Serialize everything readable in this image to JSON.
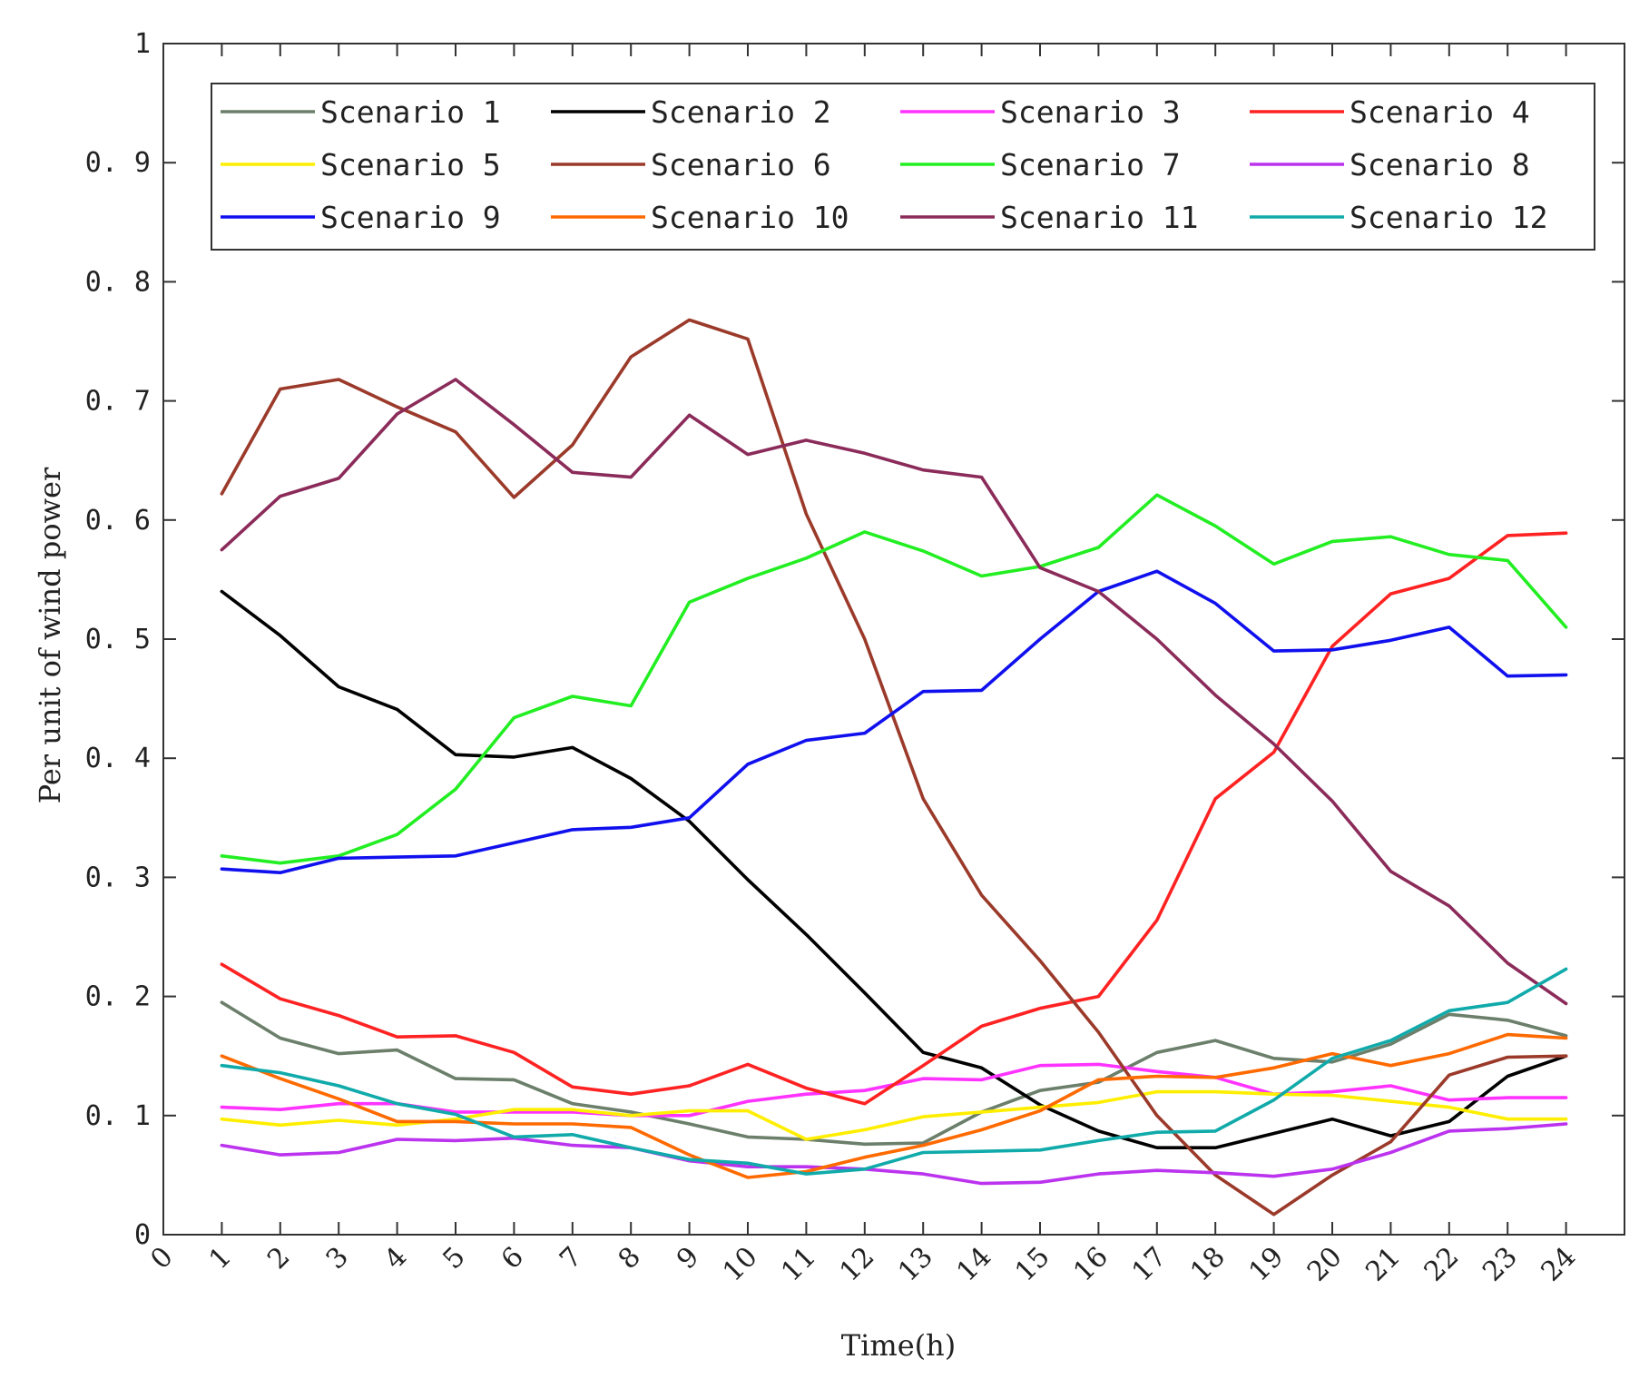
{
  "chart_data": {
    "type": "line",
    "title": "",
    "xlabel": "Time(h)",
    "ylabel": "Per unit of wind power",
    "xlim": [
      0,
      25
    ],
    "ylim": [
      0,
      1
    ],
    "x_ticks": [
      "0",
      "1",
      "2",
      "3",
      "4",
      "5",
      "6",
      "7",
      "8",
      "9",
      "10",
      "11",
      "12",
      "13",
      "14",
      "15",
      "16",
      "17",
      "18",
      "19",
      "20",
      "21",
      "22",
      "23",
      "24"
    ],
    "y_ticks": [
      "0",
      "0.1",
      "0.2",
      "0.3",
      "0.4",
      "0.5",
      "0.6",
      "0.7",
      "0.8",
      "0.9",
      "1"
    ],
    "legend_position": "top",
    "x": [
      1,
      2,
      3,
      4,
      5,
      6,
      7,
      8,
      9,
      10,
      11,
      12,
      13,
      14,
      15,
      16,
      17,
      18,
      19,
      20,
      21,
      22,
      23,
      24
    ],
    "series": [
      {
        "name": "Scenario 1",
        "color": "#6b7f6b",
        "values": [
          0.195,
          0.165,
          0.152,
          0.155,
          0.131,
          0.13,
          0.11,
          0.103,
          0.093,
          0.082,
          0.08,
          0.076,
          0.077,
          0.103,
          0.121,
          0.128,
          0.153,
          0.163,
          0.148,
          0.145,
          0.16,
          0.185,
          0.18,
          0.167
        ]
      },
      {
        "name": "Scenario 2",
        "color": "#000000",
        "values": [
          0.54,
          0.503,
          0.46,
          0.441,
          0.403,
          0.401,
          0.409,
          0.383,
          0.347,
          0.298,
          0.252,
          0.203,
          0.153,
          0.14,
          0.109,
          0.087,
          0.073,
          0.073,
          0.085,
          0.097,
          0.083,
          0.095,
          0.133,
          0.15
        ]
      },
      {
        "name": "Scenario 3",
        "color": "#ff33ff",
        "values": [
          0.107,
          0.105,
          0.11,
          0.11,
          0.103,
          0.103,
          0.103,
          0.1,
          0.1,
          0.112,
          0.118,
          0.121,
          0.131,
          0.13,
          0.142,
          0.143,
          0.137,
          0.132,
          0.118,
          0.12,
          0.125,
          0.113,
          0.115,
          0.115
        ]
      },
      {
        "name": "Scenario 4",
        "color": "#ff2222",
        "values": [
          0.227,
          0.198,
          0.184,
          0.166,
          0.167,
          0.153,
          0.124,
          0.118,
          0.125,
          0.143,
          0.123,
          0.11,
          0.142,
          0.175,
          0.19,
          0.2,
          0.264,
          0.366,
          0.405,
          0.494,
          0.538,
          0.551,
          0.587,
          0.589
        ]
      },
      {
        "name": "Scenario 5",
        "color": "#ffee00",
        "values": [
          0.097,
          0.092,
          0.096,
          0.092,
          0.097,
          0.105,
          0.105,
          0.1,
          0.104,
          0.104,
          0.08,
          0.088,
          0.099,
          0.103,
          0.107,
          0.111,
          0.12,
          0.12,
          0.118,
          0.117,
          0.112,
          0.107,
          0.097,
          0.097
        ]
      },
      {
        "name": "Scenario 6",
        "color": "#9b3a2a",
        "values": [
          0.622,
          0.71,
          0.718,
          0.695,
          0.674,
          0.619,
          0.663,
          0.737,
          0.768,
          0.752,
          0.605,
          0.5,
          0.366,
          0.285,
          0.23,
          0.17,
          0.1,
          0.05,
          0.017,
          0.05,
          0.078,
          0.134,
          0.149,
          0.15
        ]
      },
      {
        "name": "Scenario 7",
        "color": "#22ee22",
        "values": [
          0.318,
          0.312,
          0.318,
          0.336,
          0.374,
          0.434,
          0.452,
          0.444,
          0.531,
          0.551,
          0.568,
          0.59,
          0.574,
          0.553,
          0.561,
          0.577,
          0.621,
          0.595,
          0.563,
          0.582,
          0.586,
          0.571,
          0.566,
          0.51
        ]
      },
      {
        "name": "Scenario 8",
        "color": "#bb33ee",
        "values": [
          0.075,
          0.067,
          0.069,
          0.08,
          0.079,
          0.081,
          0.075,
          0.073,
          0.062,
          0.057,
          0.057,
          0.055,
          0.051,
          0.043,
          0.044,
          0.051,
          0.054,
          0.052,
          0.049,
          0.055,
          0.069,
          0.087,
          0.089,
          0.093
        ]
      },
      {
        "name": "Scenario 9",
        "color": "#1010ee",
        "values": [
          0.307,
          0.304,
          0.316,
          0.317,
          0.318,
          0.329,
          0.34,
          0.342,
          0.35,
          0.395,
          0.415,
          0.421,
          0.456,
          0.457,
          0.5,
          0.54,
          0.557,
          0.53,
          0.49,
          0.491,
          0.499,
          0.51,
          0.469,
          0.47
        ]
      },
      {
        "name": "Scenario 10",
        "color": "#ff6a00",
        "values": [
          0.15,
          0.131,
          0.114,
          0.095,
          0.095,
          0.093,
          0.093,
          0.09,
          0.067,
          0.048,
          0.053,
          0.065,
          0.075,
          0.088,
          0.104,
          0.13,
          0.133,
          0.132,
          0.14,
          0.152,
          0.142,
          0.152,
          0.168,
          0.165
        ]
      },
      {
        "name": "Scenario 11",
        "color": "#8b2b5a",
        "values": [
          0.575,
          0.62,
          0.635,
          0.689,
          0.718,
          0.68,
          0.64,
          0.636,
          0.688,
          0.655,
          0.667,
          0.656,
          0.642,
          0.636,
          0.56,
          0.54,
          0.5,
          0.453,
          0.412,
          0.364,
          0.305,
          0.276,
          0.228,
          0.194
        ]
      },
      {
        "name": "Scenario 12",
        "color": "#11aaaa",
        "values": [
          0.142,
          0.136,
          0.125,
          0.11,
          0.101,
          0.082,
          0.084,
          0.073,
          0.063,
          0.06,
          0.051,
          0.055,
          0.069,
          0.07,
          0.071,
          0.079,
          0.086,
          0.087,
          0.113,
          0.148,
          0.163,
          0.188,
          0.195,
          0.223
        ]
      }
    ]
  }
}
